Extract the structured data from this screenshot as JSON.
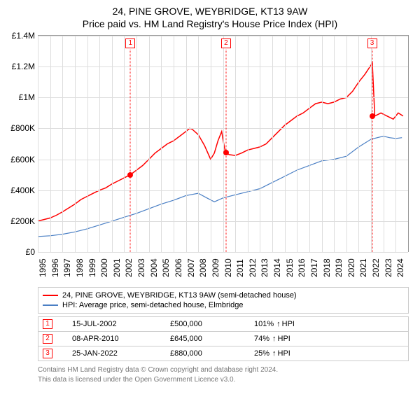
{
  "title": {
    "line1": "24, PINE GROVE, WEYBRIDGE, KT13 9AW",
    "line2": "Price paid vs. HM Land Registry's House Price Index (HPI)"
  },
  "chart": {
    "type": "line",
    "background_color": "#ffffff",
    "grid_color": "#dddddd",
    "axis_color": "#999999",
    "ylim": [
      0,
      1400000
    ],
    "ytick_step": 200000,
    "yticks": [
      {
        "v": 0,
        "label": "£0"
      },
      {
        "v": 200000,
        "label": "£200K"
      },
      {
        "v": 400000,
        "label": "£400K"
      },
      {
        "v": 600000,
        "label": "£600K"
      },
      {
        "v": 800000,
        "label": "£800K"
      },
      {
        "v": 1000000,
        "label": "£1M"
      },
      {
        "v": 1200000,
        "label": "£1.2M"
      },
      {
        "v": 1400000,
        "label": "£1.4M"
      }
    ],
    "xlim": [
      1995,
      2025
    ],
    "xticks": [
      1995,
      1996,
      1997,
      1998,
      1999,
      2000,
      2001,
      2002,
      2003,
      2004,
      2005,
      2006,
      2007,
      2008,
      2009,
      2010,
      2011,
      2012,
      2013,
      2014,
      2015,
      2016,
      2017,
      2018,
      2019,
      2020,
      2021,
      2022,
      2023,
      2024
    ],
    "tick_fontsize": 12,
    "title_fontsize": 14,
    "series": [
      {
        "id": "price_paid",
        "label": "24, PINE GROVE, WEYBRIDGE, KT13 9AW (semi-detached house)",
        "color": "#ff0000",
        "linewidth": 1.5,
        "points": [
          [
            1995.0,
            200000
          ],
          [
            1995.5,
            210000
          ],
          [
            1996.0,
            220000
          ],
          [
            1996.5,
            238000
          ],
          [
            1997.0,
            260000
          ],
          [
            1997.5,
            285000
          ],
          [
            1998.0,
            310000
          ],
          [
            1998.5,
            340000
          ],
          [
            1999.0,
            360000
          ],
          [
            1999.5,
            380000
          ],
          [
            2000.0,
            400000
          ],
          [
            2000.5,
            415000
          ],
          [
            2001.0,
            440000
          ],
          [
            2001.5,
            460000
          ],
          [
            2002.0,
            480000
          ],
          [
            2002.5,
            500000
          ],
          [
            2003.0,
            530000
          ],
          [
            2003.5,
            560000
          ],
          [
            2004.0,
            600000
          ],
          [
            2004.5,
            640000
          ],
          [
            2005.0,
            670000
          ],
          [
            2005.5,
            700000
          ],
          [
            2006.0,
            720000
          ],
          [
            2006.5,
            750000
          ],
          [
            2007.0,
            780000
          ],
          [
            2007.3,
            800000
          ],
          [
            2007.5,
            795000
          ],
          [
            2008.0,
            760000
          ],
          [
            2008.5,
            690000
          ],
          [
            2009.0,
            600000
          ],
          [
            2009.3,
            640000
          ],
          [
            2009.6,
            720000
          ],
          [
            2009.9,
            780000
          ],
          [
            2010.0,
            730000
          ],
          [
            2010.2,
            645000
          ],
          [
            2010.5,
            630000
          ],
          [
            2011.0,
            625000
          ],
          [
            2011.5,
            640000
          ],
          [
            2012.0,
            660000
          ],
          [
            2012.5,
            670000
          ],
          [
            2013.0,
            680000
          ],
          [
            2013.5,
            700000
          ],
          [
            2014.0,
            740000
          ],
          [
            2014.5,
            780000
          ],
          [
            2015.0,
            820000
          ],
          [
            2015.5,
            850000
          ],
          [
            2016.0,
            880000
          ],
          [
            2016.5,
            900000
          ],
          [
            2017.0,
            930000
          ],
          [
            2017.5,
            960000
          ],
          [
            2018.0,
            970000
          ],
          [
            2018.5,
            960000
          ],
          [
            2019.0,
            970000
          ],
          [
            2019.5,
            990000
          ],
          [
            2020.0,
            1000000
          ],
          [
            2020.5,
            1040000
          ],
          [
            2021.0,
            1100000
          ],
          [
            2021.5,
            1150000
          ],
          [
            2022.0,
            1210000
          ],
          [
            2022.1,
            1225000
          ],
          [
            2022.3,
            880000
          ],
          [
            2022.8,
            900000
          ],
          [
            2023.3,
            880000
          ],
          [
            2023.8,
            860000
          ],
          [
            2024.2,
            900000
          ],
          [
            2024.6,
            880000
          ]
        ]
      },
      {
        "id": "hpi",
        "label": "HPI: Average price, semi-detached house, Elmbridge",
        "color": "#4a7fc4",
        "linewidth": 1.2,
        "points": [
          [
            1995.0,
            100000
          ],
          [
            1996.0,
            105000
          ],
          [
            1997.0,
            115000
          ],
          [
            1998.0,
            130000
          ],
          [
            1999.0,
            150000
          ],
          [
            2000.0,
            175000
          ],
          [
            2001.0,
            200000
          ],
          [
            2002.0,
            225000
          ],
          [
            2003.0,
            250000
          ],
          [
            2004.0,
            280000
          ],
          [
            2005.0,
            310000
          ],
          [
            2006.0,
            335000
          ],
          [
            2007.0,
            365000
          ],
          [
            2008.0,
            380000
          ],
          [
            2008.7,
            350000
          ],
          [
            2009.3,
            325000
          ],
          [
            2010.0,
            350000
          ],
          [
            2011.0,
            370000
          ],
          [
            2012.0,
            390000
          ],
          [
            2013.0,
            410000
          ],
          [
            2014.0,
            450000
          ],
          [
            2015.0,
            490000
          ],
          [
            2016.0,
            530000
          ],
          [
            2017.0,
            560000
          ],
          [
            2018.0,
            590000
          ],
          [
            2019.0,
            600000
          ],
          [
            2020.0,
            620000
          ],
          [
            2021.0,
            680000
          ],
          [
            2022.0,
            730000
          ],
          [
            2023.0,
            750000
          ],
          [
            2023.5,
            740000
          ],
          [
            2024.0,
            735000
          ],
          [
            2024.5,
            740000
          ]
        ]
      }
    ],
    "markers": [
      {
        "n": "1",
        "x": 2002.5,
        "y": 500000
      },
      {
        "n": "2",
        "x": 2010.25,
        "y": 645000
      },
      {
        "n": "3",
        "x": 2022.08,
        "y": 880000
      }
    ],
    "marker_style": {
      "border_color": "#ff0000",
      "line_style": "dotted",
      "dot_color": "#ff0000",
      "dot_radius": 4
    }
  },
  "legend": {
    "border_color": "#cccccc",
    "fontsize": 11
  },
  "sales": [
    {
      "n": "1",
      "date": "15-JUL-2002",
      "price": "£500,000",
      "pct": "101%",
      "hpi_suffix": "HPI"
    },
    {
      "n": "2",
      "date": "08-APR-2010",
      "price": "£645,000",
      "pct": "74%",
      "hpi_suffix": "HPI"
    },
    {
      "n": "3",
      "date": "25-JAN-2022",
      "price": "£880,000",
      "pct": "25%",
      "hpi_suffix": "HPI"
    }
  ],
  "footer": {
    "line1": "Contains HM Land Registry data © Crown copyright and database right 2024.",
    "line2": "This data is licensed under the Open Government Licence v3.0.",
    "color": "#777777",
    "fontsize": 10
  }
}
